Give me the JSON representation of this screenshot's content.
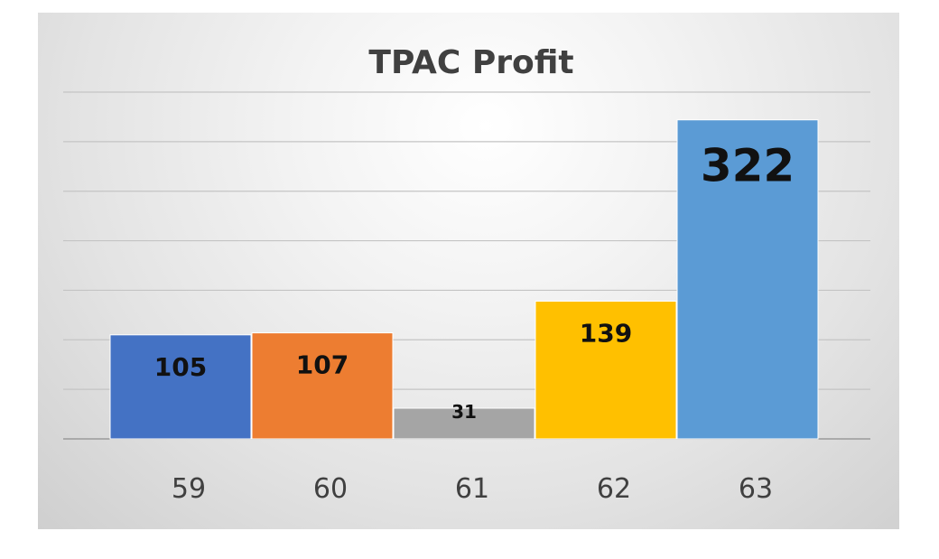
{
  "chart_data": {
    "type": "bar",
    "title": "TPAC Profit",
    "xlabel": "",
    "ylabel": "",
    "categories": [
      "59",
      "60",
      "61",
      "62",
      "63"
    ],
    "values": [
      105,
      107,
      31,
      139,
      322
    ],
    "data_labels": [
      "105",
      "107",
      "31",
      "139",
      "322"
    ],
    "colors": [
      "#4472C4",
      "#ED7D31",
      "#A5A5A5",
      "#FFC000",
      "#5B9BD5"
    ],
    "ylim": [
      0,
      350
    ],
    "gridlines": true,
    "y_axis_visible": false,
    "legend": "none"
  }
}
